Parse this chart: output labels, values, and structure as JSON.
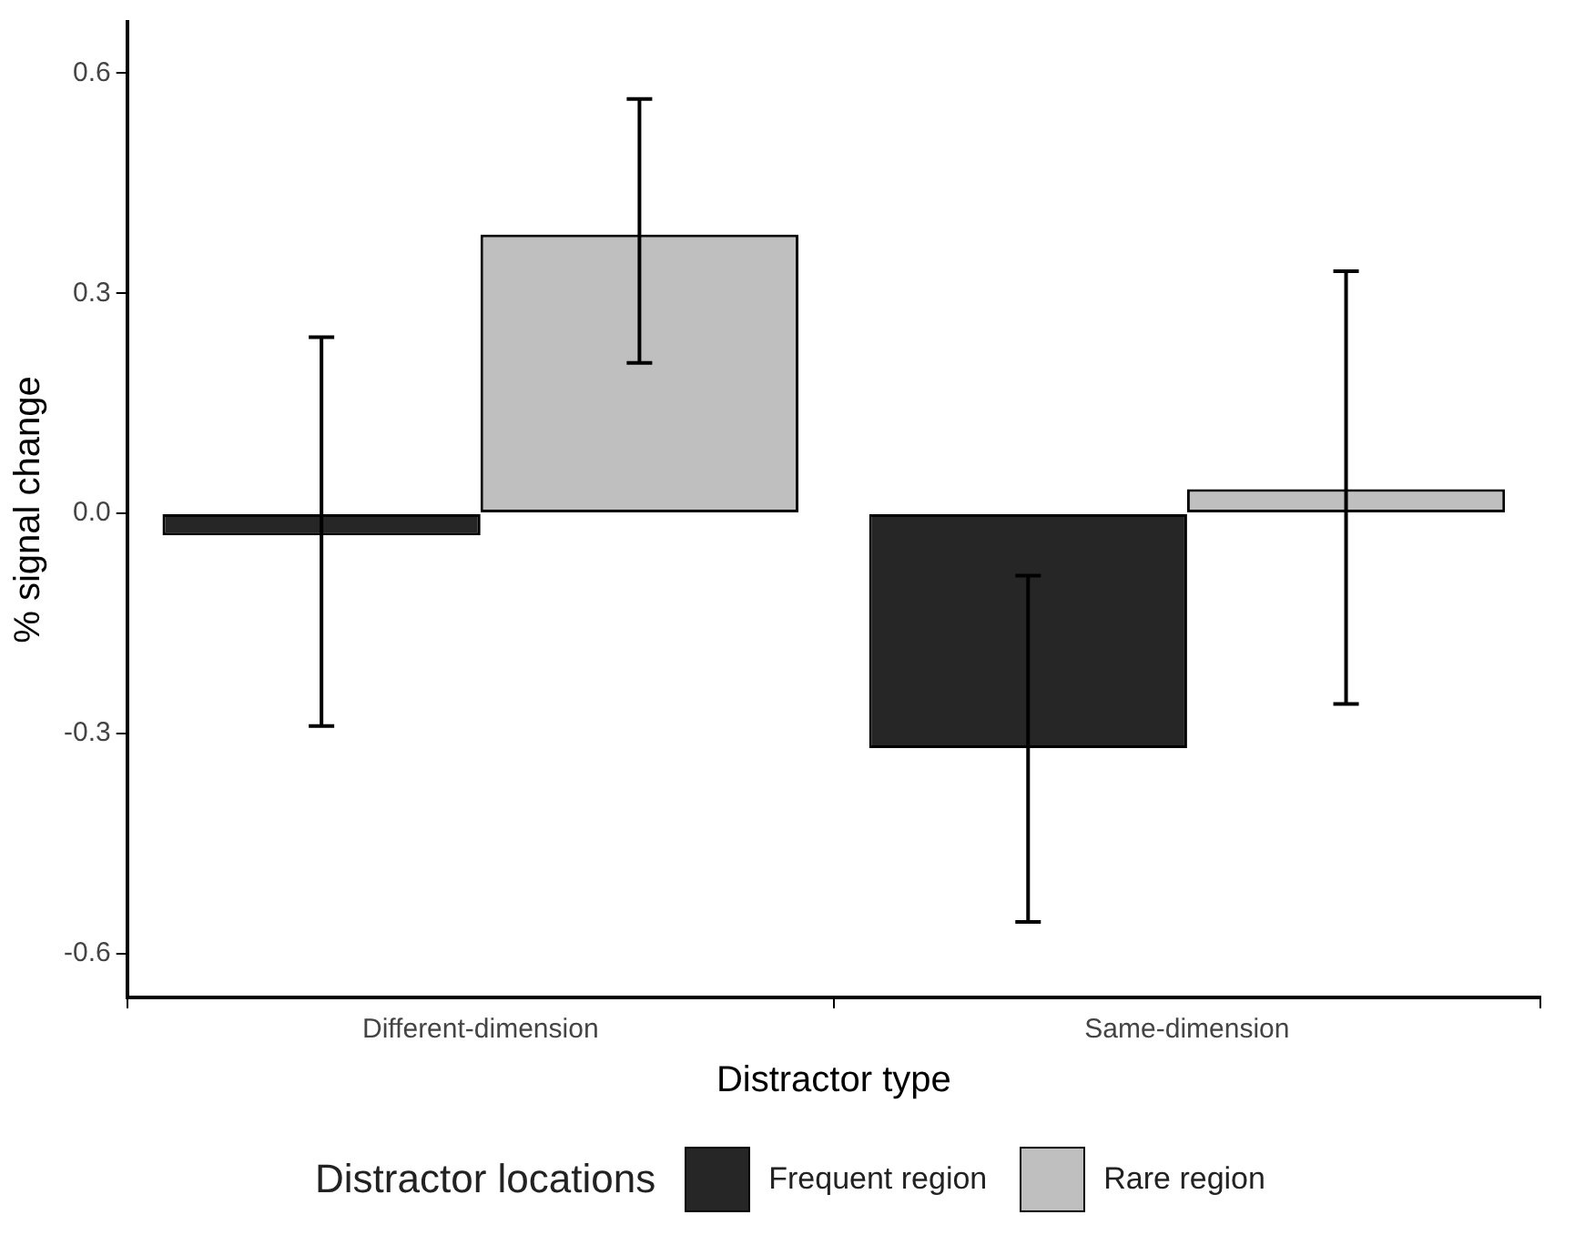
{
  "chart_data": {
    "type": "bar",
    "xlabel": "Distractor type",
    "ylabel": "% signal change",
    "legend_title": "Distractor locations",
    "legend": "bottom",
    "grid": false,
    "categories": [
      "Different-dimension",
      "Same-dimension"
    ],
    "ylim": [
      -0.66,
      0.67
    ],
    "yticks": [
      {
        "value": -0.6,
        "label": "-0.6"
      },
      {
        "value": -0.3,
        "label": "-0.3"
      },
      {
        "value": 0,
        "label": "0.0"
      },
      {
        "value": 0.3,
        "label": "0.3"
      },
      {
        "value": 0.6,
        "label": "0.6"
      }
    ],
    "series": [
      {
        "name": "Frequent region",
        "color": "#262626",
        "values": [
          -0.03,
          -0.32
        ],
        "errors": [
          [
            -0.29,
            0.24
          ],
          [
            -0.557,
            -0.085
          ]
        ]
      },
      {
        "name": "Rare region",
        "color": "#bfbfbf",
        "values": [
          0.38,
          0.033
        ],
        "errors": [
          [
            0.205,
            0.565
          ],
          [
            -0.26,
            0.33
          ]
        ]
      }
    ]
  }
}
